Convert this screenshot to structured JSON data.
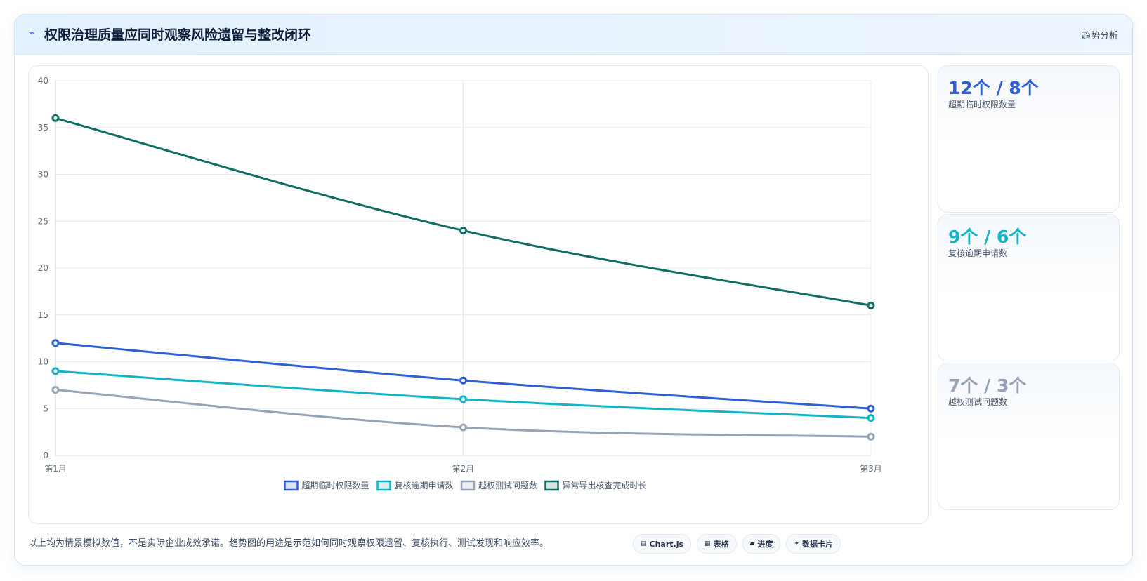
{
  "header": {
    "icon": "lightning-icon",
    "title": "权限治理质量应同时观察风险遗留与整改闭环",
    "action_label": "趋势分析"
  },
  "chart_data": {
    "type": "line",
    "categories": [
      "第1月",
      "第2月",
      "第3月"
    ],
    "ylim": [
      0,
      40
    ],
    "yticks": [
      0,
      5,
      10,
      15,
      20,
      25,
      30,
      35,
      40
    ],
    "grid": true,
    "legend_position": "bottom-center",
    "series": [
      {
        "name": "超期临时权限数量",
        "values": [
          12,
          8,
          5
        ],
        "color": "#2f5fd6"
      },
      {
        "name": "复核逾期申请数",
        "values": [
          9,
          6,
          4
        ],
        "color": "#14b4c8"
      },
      {
        "name": "越权测试问题数",
        "values": [
          7,
          3,
          2
        ],
        "color": "#97a3b6"
      },
      {
        "name": "异常导出核查完成时长",
        "values": [
          36,
          24,
          16
        ],
        "color": "#0f6e63"
      }
    ]
  },
  "side_cards": [
    {
      "value": "12个 / 8个",
      "label": "超期临时权限数量",
      "color": "#2f5fd6"
    },
    {
      "value": "9个 / 6个",
      "label": "复核逾期申请数",
      "color": "#14b4c8"
    },
    {
      "value": "7个 / 3个",
      "label": "越权测试问题数",
      "color": "#97a3b6"
    }
  ],
  "footnote": "以上均为情景模拟数值，不是实际企业成效承诺。趋势图的用途是示范如何同时观察权限遗留、复核执行、测试发现和响应效率。",
  "chips": [
    {
      "icon": "chart-icon",
      "glyph": "▤",
      "label": "Chart.js"
    },
    {
      "icon": "table-icon",
      "glyph": "▦",
      "label": "表格"
    },
    {
      "icon": "progress-icon",
      "glyph": "▰",
      "label": "进度"
    },
    {
      "icon": "sparkle-icon",
      "glyph": "✦",
      "label": "数据卡片"
    }
  ]
}
